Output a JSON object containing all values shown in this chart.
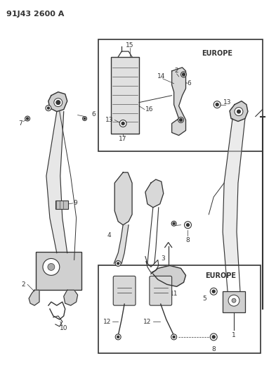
{
  "title": "91J43 2600 A",
  "bg": "#ffffff",
  "lc": "#333333",
  "fig_w": 3.93,
  "fig_h": 5.33,
  "dpi": 100
}
